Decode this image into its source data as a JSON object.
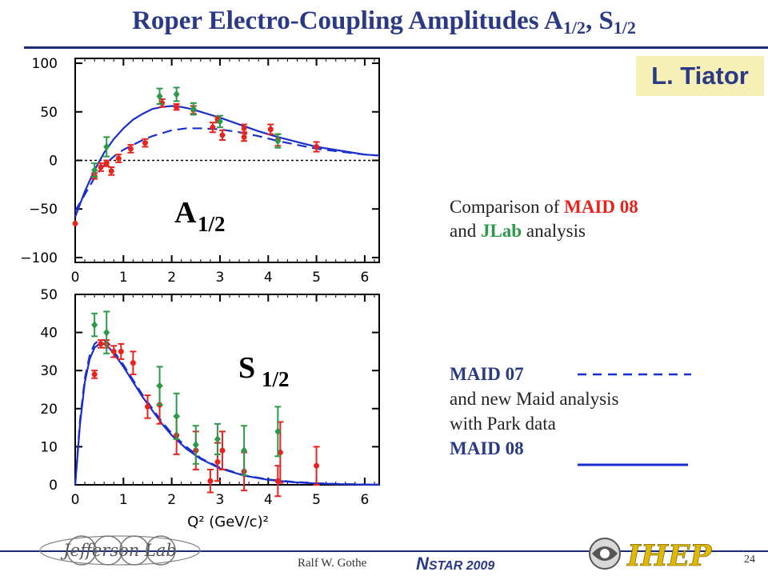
{
  "header": {
    "title_main": "Roper Electro-Coupling Amplitudes A",
    "title_sub1": "1/2",
    "title_mid": ", S",
    "title_sub2": "1/2",
    "author": "L. Tiator"
  },
  "text": {
    "comparison_prefix": "Comparison of ",
    "maid08": "MAID 08",
    "and": "and ",
    "jlab": "JLab",
    "analysis": " analysis",
    "maid07": "MAID 07",
    "new_maid": "and new Maid analysis",
    "park": "with Park data",
    "maid08b": "MAID 08"
  },
  "footer": {
    "name": "Ralf  W. Gothe",
    "conference_n": "N",
    "conference_rest": "STAR 2009",
    "page": "24",
    "jlab_logo_text": "Jefferson Lab",
    "ihep_logo_text": "IHEP"
  },
  "colors": {
    "accent": "#2b3a86",
    "maid08": "#e8231e",
    "jlab": "#2c9a4a",
    "curve": "#1a2ecc",
    "author_bg": "#f7f0b6"
  },
  "chart_data": [
    {
      "type": "scatter",
      "panel_label": "A",
      "panel_label_sub": "1/2",
      "xlim": [
        0,
        6.3
      ],
      "ylim": [
        -105,
        105
      ],
      "xticks": [
        "0",
        "1",
        "2",
        "3",
        "4",
        "5",
        "6"
      ],
      "yticks": [
        "100",
        "50",
        "0",
        "−50",
        "−100"
      ],
      "ytick_values": [
        100,
        50,
        0,
        -50,
        -100
      ],
      "zero_line": true,
      "series": [
        {
          "name": "MAID 08",
          "color": "#e8231e",
          "marker": "circle",
          "points": [
            {
              "x": 0.0,
              "y": -65,
              "err": 0
            },
            {
              "x": 0.4,
              "y": -16,
              "err": 3
            },
            {
              "x": 0.53,
              "y": -7,
              "err": 4
            },
            {
              "x": 0.65,
              "y": -3,
              "err": 3
            },
            {
              "x": 0.75,
              "y": -11,
              "err": 4
            },
            {
              "x": 0.9,
              "y": 2,
              "err": 4
            },
            {
              "x": 1.15,
              "y": 12,
              "err": 4
            },
            {
              "x": 1.45,
              "y": 18,
              "err": 4
            },
            {
              "x": 1.8,
              "y": 59,
              "err": 4
            },
            {
              "x": 2.1,
              "y": 55,
              "err": 3
            },
            {
              "x": 2.45,
              "y": 52,
              "err": 4
            },
            {
              "x": 2.85,
              "y": 34,
              "err": 5
            },
            {
              "x": 2.95,
              "y": 42,
              "err": 3
            },
            {
              "x": 3.05,
              "y": 26,
              "err": 5
            },
            {
              "x": 3.5,
              "y": 33,
              "err": 4
            },
            {
              "x": 3.5,
              "y": 24,
              "err": 4
            },
            {
              "x": 4.05,
              "y": 32,
              "err": 5
            },
            {
              "x": 4.2,
              "y": 21,
              "err": 6
            },
            {
              "x": 5.0,
              "y": 14,
              "err": 5
            }
          ]
        },
        {
          "name": "JLab",
          "color": "#2c9a4a",
          "marker": "diamond",
          "points": [
            {
              "x": 0.4,
              "y": -10,
              "err": 7
            },
            {
              "x": 0.65,
              "y": 14,
              "err": 10
            },
            {
              "x": 1.75,
              "y": 66,
              "err": 8
            },
            {
              "x": 2.1,
              "y": 68,
              "err": 7
            },
            {
              "x": 2.45,
              "y": 53,
              "err": 6
            },
            {
              "x": 3.0,
              "y": 40,
              "err": 6
            },
            {
              "x": 4.2,
              "y": 20,
              "err": 7
            }
          ]
        }
      ],
      "curves": [
        {
          "name": "MAID 08",
          "style": "solid",
          "x": [
            0.0,
            0.2,
            0.4,
            0.6,
            0.8,
            1.0,
            1.2,
            1.4,
            1.6,
            1.8,
            2.0,
            2.2,
            2.4,
            2.6,
            2.8,
            3.0,
            3.4,
            3.8,
            4.2,
            4.6,
            5.0,
            5.5,
            6.0,
            6.3
          ],
          "y": [
            -58,
            -32,
            -10,
            8,
            22,
            33,
            42,
            48,
            53,
            55,
            56,
            55,
            53,
            50,
            47,
            44,
            37,
            30,
            24,
            19,
            14,
            10,
            6,
            5
          ]
        },
        {
          "name": "MAID 07",
          "style": "dashed",
          "x": [
            0.0,
            0.2,
            0.4,
            0.6,
            0.8,
            1.0,
            1.2,
            1.4,
            1.6,
            1.8,
            2.0,
            2.3,
            2.6,
            3.0,
            3.4,
            3.8,
            4.2,
            4.6,
            5.0,
            5.5,
            6.0,
            6.3
          ],
          "y": [
            -52,
            -35,
            -18,
            -5,
            4,
            11,
            16,
            21,
            25,
            28,
            31,
            33,
            33,
            32,
            29,
            25,
            20,
            16,
            12,
            9,
            6,
            5
          ]
        }
      ]
    },
    {
      "type": "scatter",
      "panel_label": "S",
      "panel_label_sub": "1/2",
      "xlim": [
        0,
        6.3
      ],
      "ylim": [
        0,
        50
      ],
      "xticks": [
        "0",
        "1",
        "2",
        "3",
        "4",
        "5",
        "6"
      ],
      "yticks": [
        "50",
        "40",
        "30",
        "20",
        "10",
        "0"
      ],
      "ytick_values": [
        50,
        40,
        30,
        20,
        10,
        0
      ],
      "xlabel": "Q² (GeV/c)²",
      "series": [
        {
          "name": "MAID 08",
          "color": "#e8231e",
          "marker": "circle",
          "points": [
            {
              "x": 0.4,
              "y": 29,
              "err": 1
            },
            {
              "x": 0.53,
              "y": 37,
              "err": 1
            },
            {
              "x": 0.65,
              "y": 37,
              "err": 1
            },
            {
              "x": 0.8,
              "y": 35,
              "err": 1.5
            },
            {
              "x": 0.95,
              "y": 35,
              "err": 2
            },
            {
              "x": 1.2,
              "y": 32,
              "err": 3
            },
            {
              "x": 1.5,
              "y": 20.5,
              "err": 3
            },
            {
              "x": 1.75,
              "y": 21,
              "err": 5
            },
            {
              "x": 2.1,
              "y": 13,
              "err": 5
            },
            {
              "x": 2.5,
              "y": 9,
              "err": 5
            },
            {
              "x": 2.8,
              "y": 1,
              "err": 3
            },
            {
              "x": 2.95,
              "y": 6,
              "err": 5
            },
            {
              "x": 3.05,
              "y": 9,
              "err": 5
            },
            {
              "x": 3.5,
              "y": 3.5,
              "err": 5
            },
            {
              "x": 4.2,
              "y": 1,
              "err": 4
            },
            {
              "x": 4.25,
              "y": 8.5,
              "err": 8
            },
            {
              "x": 5.0,
              "y": 5,
              "err": 5
            }
          ]
        },
        {
          "name": "JLab",
          "color": "#2c9a4a",
          "marker": "diamond",
          "points": [
            {
              "x": 0.4,
              "y": 42,
              "err": 3
            },
            {
              "x": 0.65,
              "y": 40,
              "err": 5.5
            },
            {
              "x": 1.75,
              "y": 26,
              "err": 5
            },
            {
              "x": 2.1,
              "y": 18,
              "err": 6
            },
            {
              "x": 2.5,
              "y": 10.5,
              "err": 5
            },
            {
              "x": 2.95,
              "y": 12,
              "err": 4
            },
            {
              "x": 3.5,
              "y": 9,
              "err": 6.5
            },
            {
              "x": 4.2,
              "y": 14,
              "err": 6.5
            }
          ]
        }
      ],
      "curves": [
        {
          "name": "MAID 08",
          "style": "solid",
          "x": [
            0.0,
            0.1,
            0.2,
            0.3,
            0.4,
            0.5,
            0.6,
            0.7,
            0.8,
            1.0,
            1.2,
            1.4,
            1.6,
            1.8,
            2.0,
            2.3,
            2.6,
            3.0,
            3.5,
            4.0,
            4.5,
            5.0,
            5.5,
            6.0,
            6.3
          ],
          "y": [
            0,
            16,
            27,
            33,
            36,
            37,
            37,
            36,
            34.5,
            31,
            27,
            23,
            19.5,
            16,
            13,
            9.5,
            6.8,
            4.3,
            2.4,
            1.3,
            0.7,
            0.35,
            0.15,
            0.06,
            0.03
          ]
        },
        {
          "name": "MAID 07",
          "style": "dashed",
          "x": [
            0.0,
            0.1,
            0.2,
            0.3,
            0.4,
            0.5,
            0.6,
            0.7,
            0.8,
            1.0,
            1.2,
            1.4,
            1.6,
            1.8,
            2.0,
            2.3,
            2.6,
            3.0,
            3.5,
            4.0,
            4.5,
            5.0,
            5.5,
            6.0,
            6.3
          ],
          "y": [
            0,
            17,
            28,
            34,
            37,
            38,
            38,
            37,
            35,
            31.5,
            27.5,
            23.5,
            20,
            16.5,
            13.5,
            10,
            7,
            4.5,
            2.5,
            1.4,
            0.8,
            0.4,
            0.2,
            0.08,
            0.04
          ]
        }
      ]
    }
  ]
}
